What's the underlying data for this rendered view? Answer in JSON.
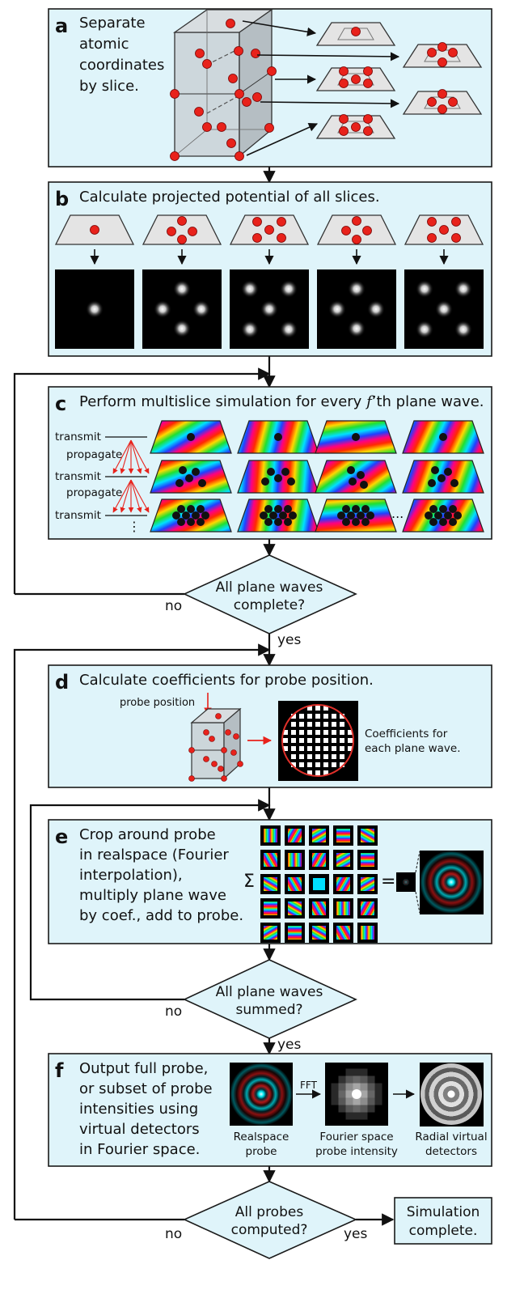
{
  "colors": {
    "panel_fill": "#dff4fa",
    "panel_stroke": "#1a1a1a",
    "atom": "#e8221b",
    "dark_atom": "#111111",
    "slice_fill": "#e4e4e4",
    "arrow_red": "#e8221b",
    "detector_ring": "#e0302a"
  },
  "panels": {
    "a": {
      "letter": "a",
      "text": [
        "Separate",
        "atomic",
        "coordinates",
        "by slice."
      ]
    },
    "b": {
      "letter": "b",
      "text": [
        "Calculate projected potential of all slices."
      ]
    },
    "c": {
      "letter": "c",
      "text_before": "Perform multislice simulation for every ",
      "text_f": "f",
      "text_after": "’th plane wave.",
      "steps": [
        "transmit",
        "propagate",
        "transmit",
        "propagate",
        "transmit"
      ],
      "ellipsis": "...",
      "vdots": "⋮"
    },
    "d": {
      "letter": "d",
      "text": [
        "Calculate coefficients for probe position."
      ],
      "probe_label": "probe position",
      "coef_label": [
        "Coefficients for",
        "each plane wave."
      ]
    },
    "e": {
      "letter": "e",
      "text": [
        "Crop around probe",
        "in realspace (Fourier",
        "interpolation),",
        "multiply plane wave",
        "by coef., add to probe."
      ],
      "sum_symbol": "Σ",
      "equals_symbol": "="
    },
    "f": {
      "letter": "f",
      "text": [
        "Output full probe,",
        "or subset of probe",
        "intensities using",
        "virtual detectors",
        "in Fourier space."
      ],
      "fft_label": "FFT",
      "captions": [
        [
          "Realspace",
          "probe"
        ],
        [
          "Fourier space",
          "probe intensity"
        ],
        [
          "Radial virtual",
          "detectors"
        ]
      ]
    }
  },
  "decisions": [
    {
      "id": "plane-waves-complete",
      "lines": [
        "All plane waves",
        "complete?"
      ],
      "no": "no",
      "yes": "yes"
    },
    {
      "id": "plane-waves-summed",
      "lines": [
        "All plane waves",
        "summed?"
      ],
      "no": "no",
      "yes": "yes"
    },
    {
      "id": "probes-computed",
      "lines": [
        "All probes",
        "computed?"
      ],
      "no": "no",
      "yes": "yes"
    }
  ],
  "terminal": {
    "lines": [
      "Simulation",
      "complete."
    ]
  }
}
